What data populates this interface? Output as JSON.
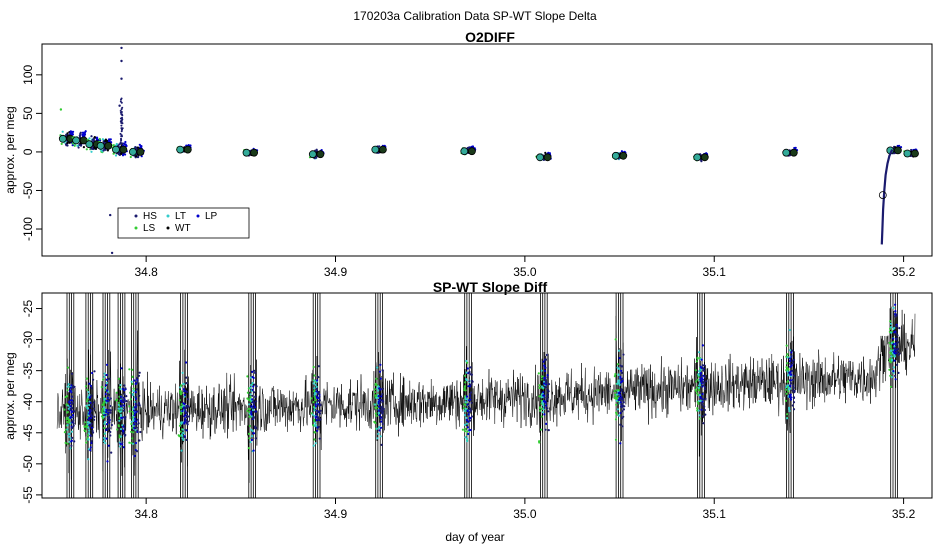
{
  "suptitle": "170203a   Calibration Data SP-WT Slope Delta",
  "colors": {
    "HS": "#1b1b6e",
    "LS": "#33cc33",
    "LT": "#33cccc",
    "WT": "#000000",
    "LP": "#0000cc",
    "trace": "#000000",
    "marker_fill": "#33aa99"
  },
  "chart_data": [
    {
      "type": "scatter",
      "title": "O2DIFF",
      "xlabel": "",
      "ylabel": "approx. per meg",
      "xlim": [
        34.745,
        35.215
      ],
      "ylim": [
        -135,
        140
      ],
      "xticks": [
        34.8,
        34.9,
        35.0,
        35.1,
        35.2
      ],
      "xtick_labels": [
        "34.8",
        "34.9",
        "35.0",
        "35.1",
        "35.2"
      ],
      "yticks": [
        -100,
        -50,
        0,
        50,
        100
      ],
      "ytick_labels": [
        "-100",
        "-50",
        "0",
        "50",
        "100"
      ],
      "grid": false,
      "legend_position": "bottom-left",
      "legend": [
        {
          "key": "HS",
          "label": "HS"
        },
        {
          "key": "LS",
          "label": "LS"
        },
        {
          "key": "LT",
          "label": "LT"
        },
        {
          "key": "WT",
          "label": "WT"
        },
        {
          "key": "LP",
          "label": "LP"
        }
      ],
      "clusters": [
        {
          "x": 34.758,
          "y": 17
        },
        {
          "x": 34.765,
          "y": 15
        },
        {
          "x": 34.772,
          "y": 10
        },
        {
          "x": 34.778,
          "y": 8
        },
        {
          "x": 34.786,
          "y": 3
        },
        {
          "x": 34.795,
          "y": 0
        },
        {
          "x": 34.82,
          "y": 3
        },
        {
          "x": 34.855,
          "y": -1
        },
        {
          "x": 34.89,
          "y": -3
        },
        {
          "x": 34.923,
          "y": 3
        },
        {
          "x": 34.97,
          "y": 1
        },
        {
          "x": 35.01,
          "y": -7
        },
        {
          "x": 35.05,
          "y": -5
        },
        {
          "x": 35.093,
          "y": -7
        },
        {
          "x": 35.14,
          "y": -1
        },
        {
          "x": 35.195,
          "y": 2
        },
        {
          "x": 35.204,
          "y": -2
        }
      ],
      "spikes": [
        {
          "x": 34.787,
          "y": 135
        },
        {
          "x": 34.787,
          "y": 118
        },
        {
          "x": 34.787,
          "y": 95
        },
        {
          "x": 34.786,
          "y": 60
        },
        {
          "x": 34.781,
          "y": -82
        },
        {
          "x": 34.782,
          "y": -131
        },
        {
          "x": 34.755,
          "y": 55
        }
      ],
      "recovery": {
        "x": [
          35.1885,
          35.1888,
          35.1892,
          35.1898,
          35.1905,
          35.1915,
          35.1925,
          35.194
        ],
        "y": [
          -120,
          -100,
          -75,
          -50,
          -30,
          -15,
          -5,
          3
        ],
        "open_circle": {
          "x": 35.189,
          "y": -56
        }
      }
    },
    {
      "type": "line",
      "title": "SP-WT Slope Diff",
      "xlabel": "day of year",
      "ylabel": "approx. per meg",
      "xlim": [
        34.745,
        35.215
      ],
      "ylim": [
        -55.5,
        -22.5
      ],
      "xticks": [
        34.8,
        34.9,
        35.0,
        35.1,
        35.2
      ],
      "xtick_labels": [
        "34.8",
        "34.9",
        "35.0",
        "35.1",
        "35.2"
      ],
      "yticks": [
        -55,
        -50,
        -45,
        -40,
        -35,
        -30,
        -25
      ],
      "ytick_labels": [
        "-55",
        "-50",
        "-45",
        "-40",
        "-35",
        "-30",
        "-25"
      ],
      "grid": false,
      "trend": [
        {
          "x": 34.75,
          "y": -42
        },
        {
          "x": 34.85,
          "y": -41
        },
        {
          "x": 34.95,
          "y": -40
        },
        {
          "x": 35.05,
          "y": -38.5
        },
        {
          "x": 35.12,
          "y": -37
        },
        {
          "x": 35.185,
          "y": -36
        },
        {
          "x": 35.19,
          "y": -31
        },
        {
          "x": 35.205,
          "y": -31
        }
      ],
      "gaps": [
        34.76,
        34.77,
        34.779,
        34.787,
        34.794,
        34.82,
        34.856,
        34.89,
        34.923,
        34.97,
        35.01,
        35.05,
        35.093,
        35.14,
        35.195
      ]
    }
  ]
}
